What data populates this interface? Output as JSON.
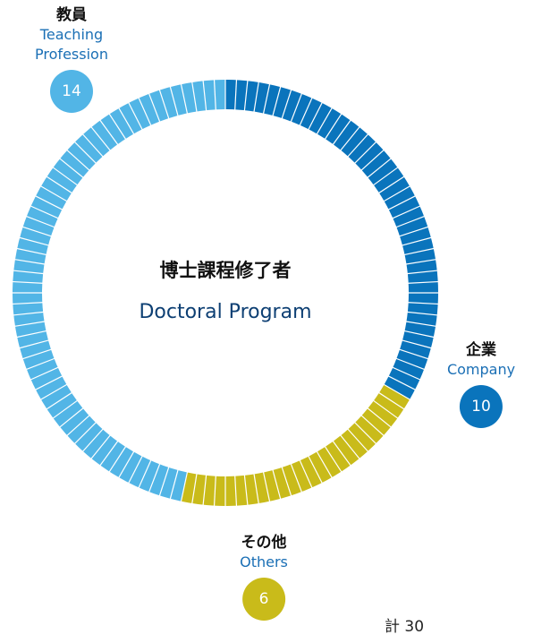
{
  "chart_data": {
    "type": "donut",
    "center_title": "博士課程修了者",
    "center_subtitle": "Doctoral Program",
    "categories_ja": [
      "企業",
      "その他",
      "教員"
    ],
    "categories_en": [
      "Company",
      "Others",
      "Teaching Profession"
    ],
    "values": [
      10,
      6,
      14
    ],
    "colors": [
      "#0a74bc",
      "#c9bb1a",
      "#52b5e6"
    ],
    "total_label": "計",
    "total": 30
  }
}
